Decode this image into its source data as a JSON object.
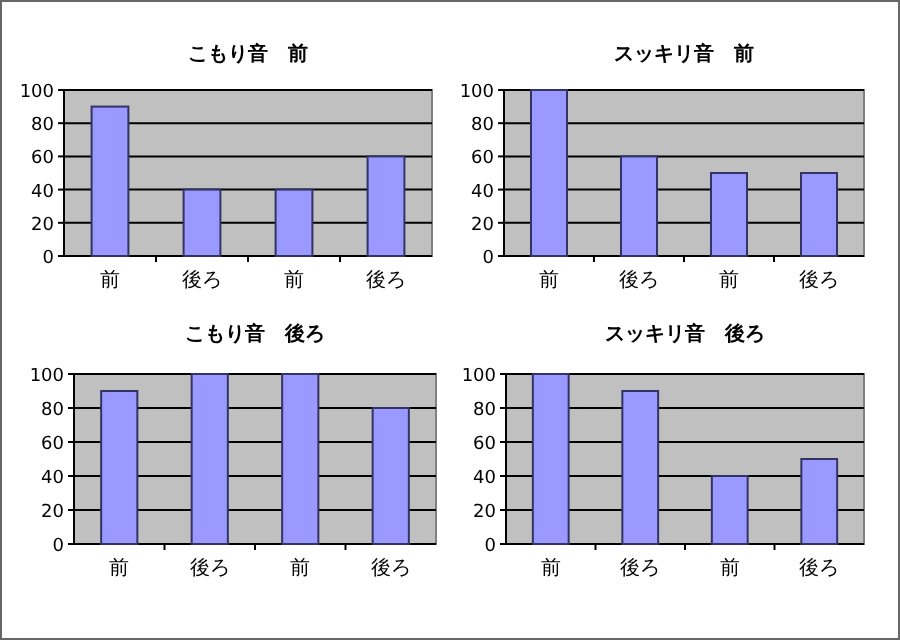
{
  "chart_data": [
    {
      "type": "bar",
      "title": "こもり音　前",
      "categories": [
        "前",
        "後ろ",
        "前",
        "後ろ"
      ],
      "values": [
        90,
        40,
        40,
        60
      ],
      "color": "#9999ff",
      "ylim": [
        0,
        100
      ],
      "yticks": [
        0,
        20,
        40,
        60,
        80,
        100
      ],
      "grid": "y"
    },
    {
      "type": "bar",
      "title": "スッキリ音　前",
      "categories": [
        "前",
        "後ろ",
        "前",
        "後ろ"
      ],
      "values": [
        100,
        60,
        50,
        50
      ],
      "color": "#9999ff",
      "ylim": [
        0,
        100
      ],
      "yticks": [
        0,
        20,
        40,
        60,
        80,
        100
      ],
      "grid": "y"
    },
    {
      "type": "bar",
      "title": "こもり音　後ろ",
      "categories": [
        "前",
        "後ろ",
        "前",
        "後ろ"
      ],
      "values": [
        90,
        100,
        100,
        80
      ],
      "color": "#9999ff",
      "ylim": [
        0,
        100
      ],
      "yticks": [
        0,
        20,
        40,
        60,
        80,
        100
      ],
      "grid": "y"
    },
    {
      "type": "bar",
      "title": "スッキリ音　後ろ",
      "categories": [
        "前",
        "後ろ",
        "前",
        "後ろ"
      ],
      "values": [
        100,
        90,
        40,
        50
      ],
      "color": "#9999ff",
      "ylim": [
        0,
        100
      ],
      "yticks": [
        0,
        20,
        40,
        60,
        80,
        100
      ],
      "grid": "y"
    }
  ]
}
